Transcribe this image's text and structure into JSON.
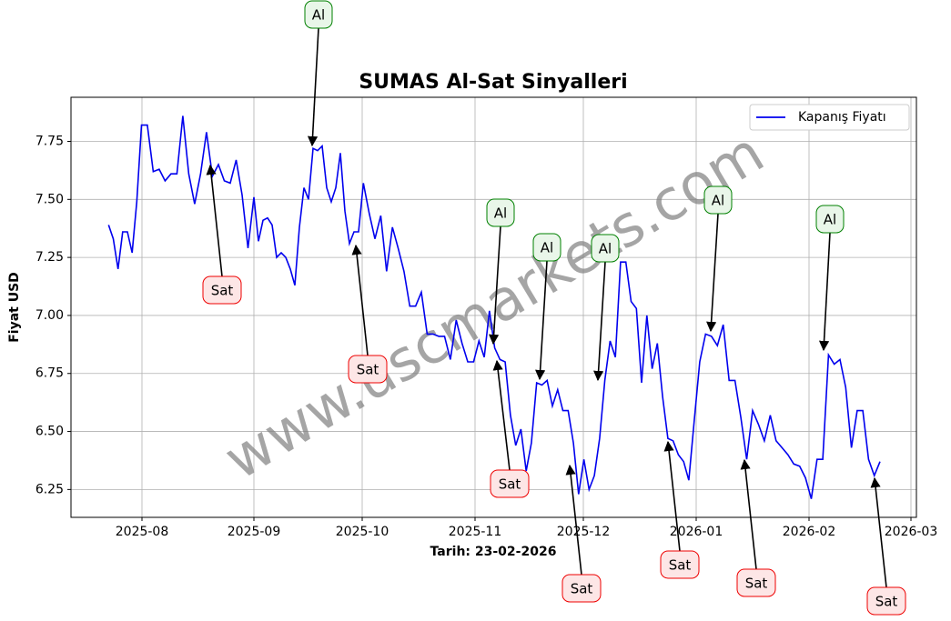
{
  "chart_data": {
    "type": "line",
    "title": "SUMAS Al-Sat Sinyalleri",
    "y_label": "Fiyat USD",
    "x_label": "Tarih: 23-02-2026",
    "watermark": "www.uscmarkets.com",
    "series": [
      {
        "name": "Kapanış Fiyatı",
        "color": "#0000ee",
        "values": [
          7.39,
          7.33,
          7.2,
          7.36,
          7.36,
          7.27,
          7.49,
          7.82,
          7.82,
          7.62,
          7.63,
          7.58,
          7.61,
          7.61,
          7.86,
          7.61,
          7.48,
          7.61,
          7.79,
          7.6,
          7.65,
          7.58,
          7.57,
          7.67,
          7.52,
          7.29,
          7.51,
          7.32,
          7.41,
          7.42,
          7.39,
          7.25,
          7.27,
          7.25,
          7.2,
          7.13,
          7.38,
          7.55,
          7.5,
          7.72,
          7.71,
          7.73,
          7.55,
          7.49,
          7.55,
          7.7,
          7.45,
          7.31,
          7.36,
          7.36,
          7.57,
          7.44,
          7.33,
          7.43,
          7.19,
          7.38,
          7.29,
          7.19,
          7.04,
          7.04,
          7.1,
          6.92,
          6.92,
          6.91,
          6.91,
          6.81,
          6.98,
          6.88,
          6.8,
          6.8,
          6.89,
          6.82,
          7.02,
          6.86,
          6.81,
          6.8,
          6.57,
          6.44,
          6.51,
          6.33,
          6.45,
          6.71,
          6.7,
          6.72,
          6.61,
          6.68,
          6.59,
          6.59,
          6.45,
          6.23,
          6.38,
          6.25,
          6.31,
          6.47,
          6.72,
          6.89,
          6.82,
          7.23,
          7.23,
          7.06,
          7.03,
          6.71,
          7.0,
          6.77,
          6.88,
          6.65,
          6.47,
          6.46,
          6.4,
          6.37,
          6.29,
          6.54,
          6.8,
          6.92,
          6.91,
          6.87,
          6.96,
          6.72,
          6.72,
          6.56,
          6.38,
          6.59,
          6.53,
          6.46,
          6.57,
          6.46,
          6.43,
          6.4,
          6.36,
          6.35,
          6.3,
          6.21,
          6.38,
          6.38,
          6.83,
          6.79,
          6.81,
          6.69,
          6.43,
          6.59,
          6.59,
          6.38,
          6.31,
          6.37
        ]
      }
    ],
    "xlim": [
      -8,
      149.3
    ],
    "xticks": [
      {
        "value": 7.1,
        "label": "2025-08"
      },
      {
        "value": 26,
        "label": "2025-09"
      },
      {
        "value": 49.8,
        "label": "2025-10"
      },
      {
        "value": 69.25,
        "label": "2025-11"
      },
      {
        "value": 89.9,
        "label": "2025-12"
      },
      {
        "value": 111.4,
        "label": "2026-01"
      },
      {
        "value": 130.6,
        "label": "2026-02"
      },
      {
        "value": 148.4,
        "label": "2026-03"
      }
    ],
    "ylim": [
      6.13,
      7.94
    ],
    "yticks": [
      6.25,
      {
        "value": 6.5,
        "label": "6.50"
      },
      6.75,
      {
        "value": 7.0,
        "label": "7.00"
      },
      7.25,
      {
        "value": 7.5,
        "label": "7.50"
      },
      7.75
    ],
    "grid": true,
    "legend": "upper right",
    "signals": [
      "Al",
      "Sat",
      "Sat",
      "Al",
      "Sat",
      "Al",
      "Al",
      "Sat",
      "Sat",
      "Al",
      "Sat",
      "Al",
      "Sat"
    ]
  }
}
